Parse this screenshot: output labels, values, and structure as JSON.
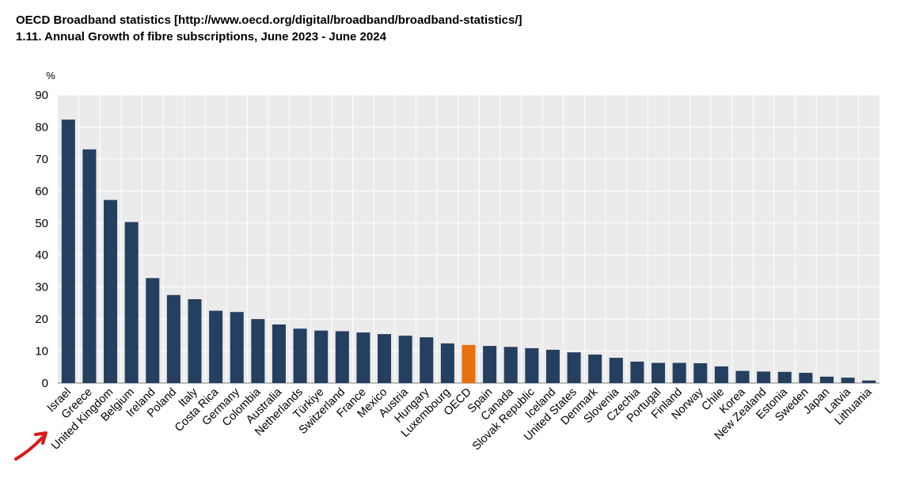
{
  "header": {
    "source_line": "OECD Broadband statistics [http://www.oecd.org/digital/broadband/broadband-statistics/]",
    "title_line": "1.11. Annual Growth of fibre subscriptions, June 2023 - June 2024"
  },
  "colors": {
    "bar": "#253f60",
    "highlight": "#e8700e",
    "plot_background": "#ebebeb",
    "grid": "#ffffff",
    "annotation_arrow": "#d81b1b"
  },
  "annotation": {
    "icon": "red-arrow-icon",
    "points_to": "Israel"
  },
  "chart_data": {
    "type": "bar",
    "title": "1.11. Annual Growth of fibre subscriptions, June 2023 - June 2024",
    "ylabel": "%",
    "xlabel": "",
    "ylim": [
      0,
      90
    ],
    "yticks": [
      0,
      10,
      20,
      30,
      40,
      50,
      60,
      70,
      80,
      90
    ],
    "grid": true,
    "highlight_category": "OECD",
    "categories": [
      "Israel",
      "Greece",
      "United Kingdom",
      "Belgium",
      "Ireland",
      "Poland",
      "Italy",
      "Costa Rica",
      "Germany",
      "Colombia",
      "Australia",
      "Netherlands",
      "Türkiye",
      "Switzerland",
      "France",
      "Mexico",
      "Austria",
      "Hungary",
      "Luxembourg",
      "OECD",
      "Spain",
      "Canada",
      "Slovak Republic",
      "Iceland",
      "United States",
      "Denmark",
      "Slovenia",
      "Czechia",
      "Portugal",
      "Finland",
      "Norway",
      "Chile",
      "Korea",
      "New Zealand",
      "Estonia",
      "Sweden",
      "Japan",
      "Latvia",
      "Lithuania"
    ],
    "values": [
      82.3,
      73.0,
      57.2,
      50.3,
      32.8,
      27.5,
      26.2,
      22.6,
      22.2,
      20.0,
      18.3,
      17.0,
      16.4,
      16.2,
      15.8,
      15.3,
      14.8,
      14.3,
      12.4,
      11.9,
      11.6,
      11.3,
      10.9,
      10.4,
      9.6,
      8.9,
      7.9,
      6.7,
      6.3,
      6.3,
      6.2,
      5.2,
      3.8,
      3.6,
      3.5,
      3.2,
      2.0,
      1.7,
      0.8
    ]
  }
}
